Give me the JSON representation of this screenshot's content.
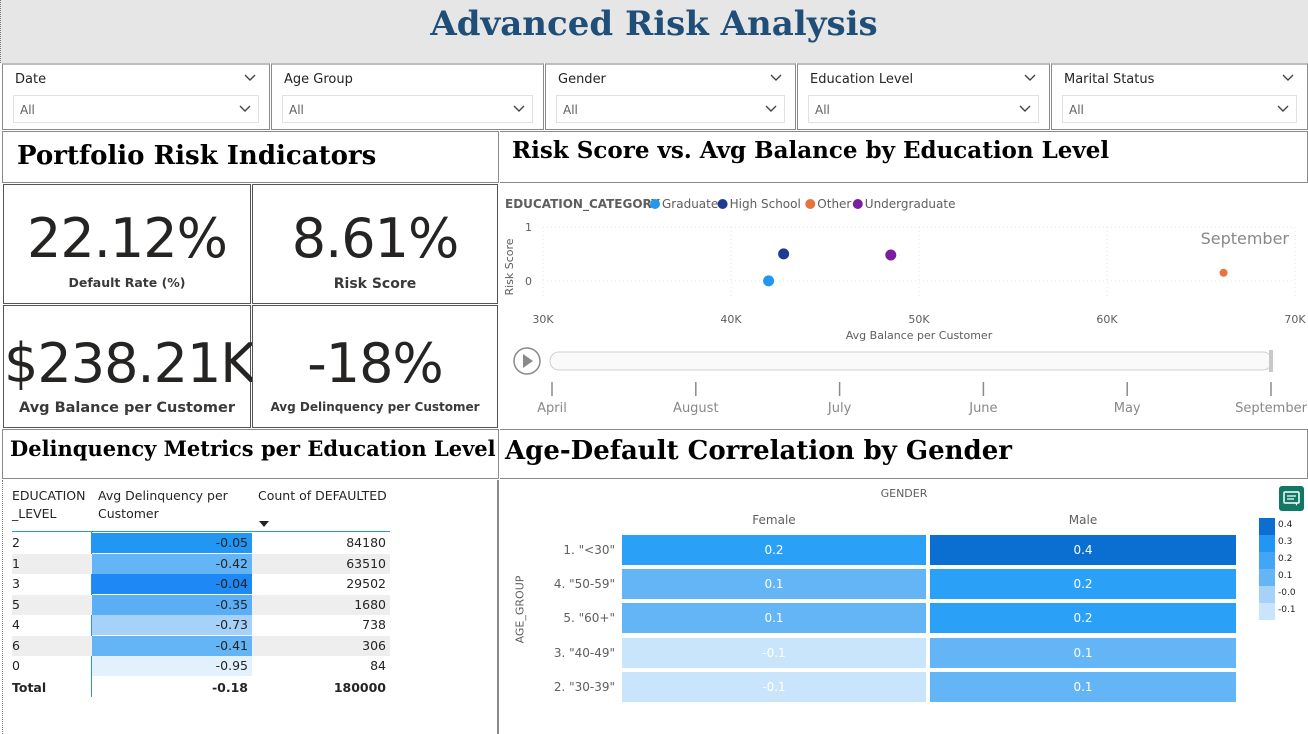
{
  "title": "Advanced Risk Analysis",
  "slicers": [
    {
      "label": "Date",
      "value": "All"
    },
    {
      "label": "Age Group",
      "value": "All"
    },
    {
      "label": "Gender",
      "value": "All"
    },
    {
      "label": "Education Level",
      "value": "All"
    },
    {
      "label": "Marital Status",
      "value": "All"
    }
  ],
  "portfolio": {
    "title": "Portfolio Risk Indicators",
    "kpis": [
      {
        "value": "22.12%",
        "caption": "Default Rate (%)"
      },
      {
        "value": "8.61%",
        "caption": "Risk Score"
      },
      {
        "value": "$238.21K",
        "caption": "Avg Balance per Customer"
      },
      {
        "value": "-18%",
        "caption": "Avg Delinquency per Customer"
      }
    ]
  },
  "scatter": {
    "title": "Risk Score vs. Avg Balance by Education Level",
    "legend_title": "EDUCATION_CATEGORY",
    "play_label": "September",
    "timeline": [
      "April",
      "August",
      "July",
      "June",
      "May",
      "September"
    ],
    "timeline_position": 1.0
  },
  "delinquency": {
    "title": "Delinquency Metrics per Education Level",
    "columns": [
      "EDUCATION _LEVEL",
      "Avg Delinquency per Customer",
      "Count of DEFAULTED"
    ],
    "rows": [
      {
        "level": "2",
        "avg": "-0.05",
        "count": "84180",
        "shade": "#2196f3"
      },
      {
        "level": "1",
        "avg": "-0.42",
        "count": "63510",
        "shade": "#64b5f6"
      },
      {
        "level": "3",
        "avg": "-0.04",
        "count": "29502",
        "shade": "#1e88f5"
      },
      {
        "level": "5",
        "avg": "-0.35",
        "count": "1680",
        "shade": "#5aaef5"
      },
      {
        "level": "4",
        "avg": "-0.73",
        "count": "738",
        "shade": "#a6d2fa"
      },
      {
        "level": "6",
        "avg": "-0.41",
        "count": "306",
        "shade": "#64b5f6"
      },
      {
        "level": "0",
        "avg": "-0.95",
        "count": "84",
        "shade": "#e3f1fd"
      }
    ],
    "total": {
      "label": "Total",
      "avg": "-0.18",
      "count": "180000"
    }
  },
  "heatmap": {
    "title": "Age-Default Correlation by Gender",
    "column_header": "GENDER",
    "row_axis": "AGE_GROUP",
    "columns": [
      "Female",
      "Male"
    ],
    "rows": [
      {
        "label": "1. \"<30\"",
        "values": [
          "0.2",
          "0.4"
        ],
        "colors": [
          "#2aa1f7",
          "#0a6fd0"
        ]
      },
      {
        "label": "4. \"50-59\"",
        "values": [
          "0.1",
          "0.2"
        ],
        "colors": [
          "#64b5f6",
          "#2aa1f7"
        ]
      },
      {
        "label": "5. \"60+\"",
        "values": [
          "0.1",
          "0.2"
        ],
        "colors": [
          "#64b5f6",
          "#2aa1f7"
        ]
      },
      {
        "label": "3. \"40-49\"",
        "values": [
          "-0.1",
          "0.1"
        ],
        "colors": [
          "#c9e5fc",
          "#64b5f6"
        ]
      },
      {
        "label": "2. \"30-39\"",
        "values": [
          "-0.1",
          "0.1"
        ],
        "colors": [
          "#c9e5fc",
          "#64b5f6"
        ]
      }
    ],
    "scale": [
      {
        "label": "0.4",
        "color": "#0a6fd0"
      },
      {
        "label": "0.3",
        "color": "#2196f3"
      },
      {
        "label": "0.2",
        "color": "#42a5f5"
      },
      {
        "label": "0.1",
        "color": "#64b5f6"
      },
      {
        "label": "-0.0",
        "color": "#a6d2fa"
      },
      {
        "label": "-0.1",
        "color": "#c9e5fc"
      }
    ]
  },
  "chart_data": {
    "type": "scatter",
    "title": "Risk Score vs. Avg Balance by Education Level",
    "xlabel": "Avg Balance per Customer",
    "ylabel": "Risk Score",
    "xlim": [
      30000,
      70000
    ],
    "ylim": [
      -0.3,
      1
    ],
    "x_ticks": [
      "30K",
      "40K",
      "50K",
      "60K",
      "70K"
    ],
    "y_ticks": [
      "0",
      "1"
    ],
    "grid": true,
    "legend_placement": "top-left",
    "series": [
      {
        "name": "Graduate",
        "color": "#2196f3",
        "points": [
          {
            "x": 42000,
            "y": 0.0
          }
        ]
      },
      {
        "name": "High School",
        "color": "#1f3a93",
        "points": [
          {
            "x": 42800,
            "y": 0.5
          }
        ]
      },
      {
        "name": "Other",
        "color": "#e8743b",
        "points": [
          {
            "x": 66200,
            "y": 0.15
          }
        ]
      },
      {
        "name": "Undergraduate",
        "color": "#7b1fa2",
        "points": [
          {
            "x": 48500,
            "y": 0.48
          }
        ]
      }
    ]
  }
}
